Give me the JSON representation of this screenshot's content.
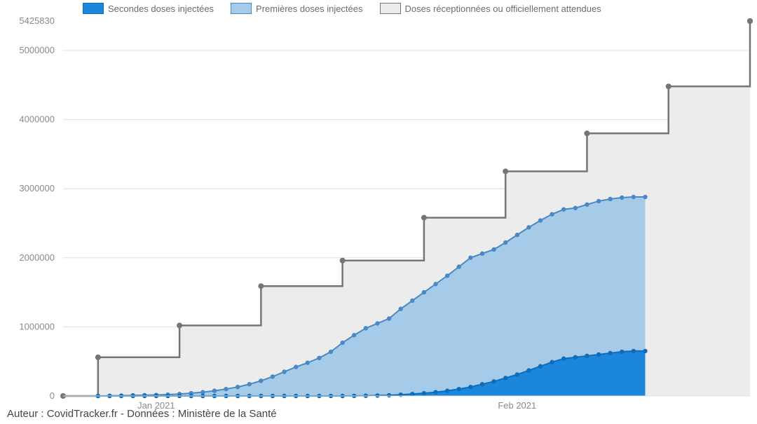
{
  "chart": {
    "type": "area-step-combo",
    "background_color": "#ffffff",
    "grid_color": "#e0e0e0",
    "title_fontsize": 13,
    "label_fontsize": 13,
    "axis_text_color": "#8a8a8a",
    "legend_text_color": "#6b6b6b",
    "yAxis": {
      "min": 0,
      "max": 5425830,
      "ticks": [
        0,
        1000000,
        2000000,
        3000000,
        4000000,
        5000000,
        5425830
      ],
      "tick_labels": [
        "0",
        "1000000",
        "2000000",
        "3000000",
        "4000000",
        "5000000",
        "5425830"
      ]
    },
    "xAxis": {
      "n": 60,
      "tick_positions": [
        8,
        39
      ],
      "tick_labels": [
        "Jan 2021",
        "Feb 2021"
      ]
    },
    "series": {
      "supply": {
        "label": "Doses réceptionnées ou officiellement attendues",
        "fill_color": "#ececec",
        "line_color": "#757575",
        "marker_color": "#757575",
        "line_width": 2.5,
        "marker_radius": 4,
        "steps": [
          {
            "from": 0,
            "to": 3,
            "value": 0
          },
          {
            "from": 3,
            "to": 10,
            "value": 560000
          },
          {
            "from": 10,
            "to": 17,
            "value": 1020000
          },
          {
            "from": 17,
            "to": 24,
            "value": 1590000
          },
          {
            "from": 24,
            "to": 31,
            "value": 1960000
          },
          {
            "from": 31,
            "to": 38,
            "value": 2580000
          },
          {
            "from": 38,
            "to": 45,
            "value": 3250000
          },
          {
            "from": 45,
            "to": 52,
            "value": 3800000
          },
          {
            "from": 52,
            "to": 59,
            "value": 4480000
          },
          {
            "from": 59,
            "to": 59,
            "value": 5425830
          }
        ],
        "markers_at": [
          0,
          3,
          10,
          17,
          24,
          31,
          38,
          45,
          52,
          59
        ]
      },
      "first_doses": {
        "label": "Premières doses injectées",
        "fill_color": "#a6cbe9",
        "line_color": "#4a89c4",
        "marker_color": "#4a89c4",
        "line_width": 2,
        "marker_radius": 3.2,
        "start": 3,
        "values": [
          0,
          2000,
          5000,
          9000,
          12000,
          15000,
          20000,
          28000,
          40000,
          55000,
          75000,
          100000,
          130000,
          170000,
          220000,
          280000,
          350000,
          420000,
          480000,
          550000,
          640000,
          770000,
          880000,
          980000,
          1050000,
          1120000,
          1260000,
          1380000,
          1500000,
          1620000,
          1740000,
          1870000,
          2000000,
          2060000,
          2120000,
          2220000,
          2330000,
          2440000,
          2540000,
          2630000,
          2700000,
          2720000,
          2770000,
          2820000,
          2850000,
          2870000,
          2880000,
          2880000
        ]
      },
      "second_doses": {
        "label": "Secondes doses injectées",
        "fill_color": "#1b86db",
        "line_color": "#0f6db8",
        "marker_color": "#0f6db8",
        "line_width": 2,
        "marker_radius": 3.2,
        "start": 3,
        "values": [
          0,
          0,
          0,
          0,
          0,
          0,
          0,
          0,
          0,
          0,
          0,
          0,
          0,
          0,
          0,
          0,
          0,
          0,
          0,
          0,
          0,
          0,
          1000,
          3000,
          6000,
          10000,
          18000,
          28000,
          40000,
          55000,
          75000,
          100000,
          130000,
          170000,
          210000,
          260000,
          310000,
          370000,
          430000,
          490000,
          540000,
          560000,
          580000,
          600000,
          620000,
          640000,
          650000,
          650000
        ]
      }
    },
    "legend": [
      {
        "key": "second_doses",
        "label": "Secondes doses injectées",
        "swatch": "#1b86db",
        "border": "#0f6db8"
      },
      {
        "key": "first_doses",
        "label": "Premières doses injectées",
        "swatch": "#a6cbe9",
        "border": "#4a89c4"
      },
      {
        "key": "supply",
        "label": "Doses réceptionnées ou officiellement attendues",
        "swatch": "#ececec",
        "border": "#757575"
      }
    ],
    "caption": "Auteur : CovidTracker.fr - Données : Ministère de la Santé"
  }
}
